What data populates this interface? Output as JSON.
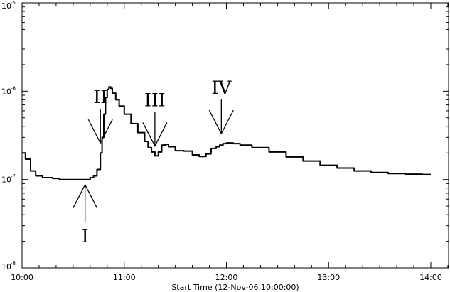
{
  "chart_data": {
    "type": "line",
    "title": "",
    "xlabel": "Start Time (12-Nov-06 10:00:00)",
    "ylabel": "",
    "scale": {
      "x": "linear",
      "y": "log"
    },
    "grid": false,
    "xlim": [
      0,
      270
    ],
    "ylim": [
      1e-08,
      1e-05
    ],
    "x_unit": "minutes after 10:00",
    "x_ticks": [
      {
        "value": 0,
        "label": "10:00"
      },
      {
        "value": 60,
        "label": "11:00"
      },
      {
        "value": 120,
        "label": "12:00"
      },
      {
        "value": 180,
        "label": "13:00"
      },
      {
        "value": 240,
        "label": "14:00"
      }
    ],
    "y_ticks": [
      {
        "value": 1e-08,
        "mantissa": "10",
        "exponent": "-8"
      },
      {
        "value": 1e-07,
        "mantissa": "10",
        "exponent": "-7"
      },
      {
        "value": 1e-06,
        "mantissa": "10",
        "exponent": "-6"
      },
      {
        "value": 1e-05,
        "mantissa": "10",
        "exponent": "-5"
      }
    ],
    "series": [
      {
        "x": [
          0,
          2,
          5,
          8,
          12,
          18,
          22,
          30,
          36,
          40,
          42,
          44,
          46,
          47,
          48,
          49,
          50,
          51,
          52,
          53,
          55,
          57,
          60,
          64,
          68,
          72,
          74,
          76,
          78,
          80,
          82,
          84,
          86,
          90,
          95,
          100,
          104,
          108,
          111,
          114,
          116,
          118,
          120,
          122,
          124,
          128,
          135,
          145,
          155,
          165,
          175,
          185,
          195,
          205,
          215,
          225,
          235,
          240
        ],
        "y": [
          2e-07,
          1.7e-07,
          1.25e-07,
          1.1e-07,
          1.05e-07,
          1.03e-07,
          1e-07,
          1e-07,
          1e-07,
          1.05e-07,
          1.1e-07,
          1.3e-07,
          2e-07,
          3e-07,
          5.5e-07,
          8.5e-07,
          1.05e-06,
          1.12e-06,
          1.08e-06,
          9.5e-07,
          8e-07,
          6.8e-07,
          5.5e-07,
          4.3e-07,
          3.4e-07,
          2.7e-07,
          2.3e-07,
          2.05e-07,
          1.85e-07,
          2.05e-07,
          2.45e-07,
          2.5e-07,
          2.35e-07,
          2.12e-07,
          2.1e-07,
          1.9e-07,
          1.82e-07,
          1.95e-07,
          2.25e-07,
          2.35e-07,
          2.45e-07,
          2.55e-07,
          2.6e-07,
          2.6e-07,
          2.55e-07,
          2.45e-07,
          2.3e-07,
          2.05e-07,
          1.8e-07,
          1.62e-07,
          1.45e-07,
          1.35e-07,
          1.25e-07,
          1.2e-07,
          1.17e-07,
          1.15e-07,
          1.14e-07,
          1.14e-07
        ]
      }
    ],
    "annotations": [
      {
        "label": "I",
        "x": 37,
        "direction": "up"
      },
      {
        "label": "II",
        "x": 46,
        "direction": "down"
      },
      {
        "label": "III",
        "x": 78,
        "direction": "down"
      },
      {
        "label": "IV",
        "x": 117,
        "direction": "down"
      }
    ]
  }
}
